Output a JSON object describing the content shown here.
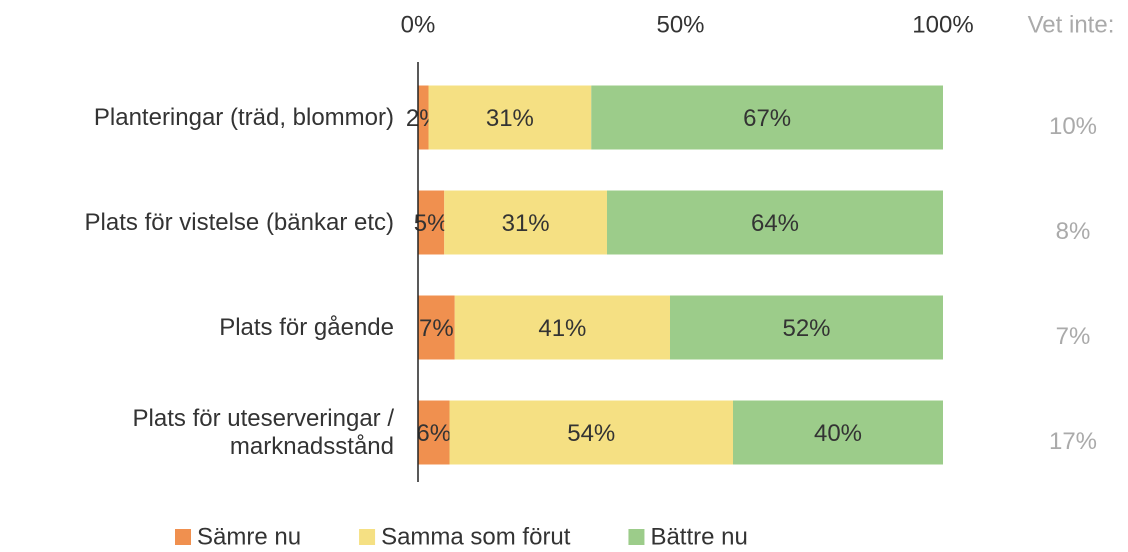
{
  "chart_data": {
    "type": "stacked_bar_horizontal",
    "categories": [
      "Planteringar (träd, blommor)",
      "Plats för vistelse (bänkar etc)",
      "Plats för gående",
      "Plats för uteserveringar / marknadsstånd"
    ],
    "series": [
      {
        "name": "Sämre nu",
        "color": "#f0904f",
        "values": [
          2,
          5,
          7,
          6
        ],
        "value_labels": [
          "2%",
          "5%",
          "7%",
          "6%"
        ]
      },
      {
        "name": "Samma som förut",
        "color": "#f5e083",
        "values": [
          31,
          31,
          41,
          54
        ],
        "value_labels": [
          "31%",
          "31%",
          "41%",
          "54%"
        ]
      },
      {
        "name": "Bättre nu",
        "color": "#9ccc8a",
        "values": [
          67,
          64,
          52,
          40
        ],
        "value_labels": [
          "67%",
          "64%",
          "52%",
          "40%"
        ]
      }
    ],
    "xlim": [
      0,
      100
    ],
    "xticks": [
      {
        "value": 0,
        "label": "0%"
      },
      {
        "value": 50,
        "label": "50%"
      },
      {
        "value": 100,
        "label": "100%"
      }
    ],
    "dont_know": {
      "label": "Vet inte:",
      "values": [
        10,
        8,
        7,
        17
      ],
      "value_labels": [
        "10%",
        "8%",
        "7%",
        "17%"
      ]
    },
    "legend": "bottom"
  }
}
